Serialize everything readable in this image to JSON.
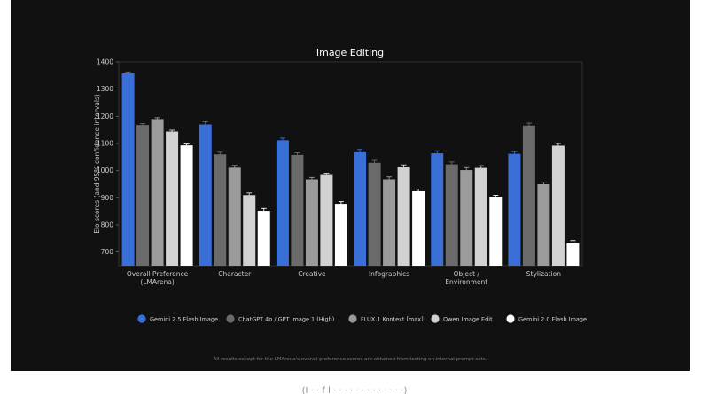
{
  "chart_data": {
    "type": "bar",
    "title": "Image Editing",
    "ylabel": "Elo scores (and 95% confidence intervals)",
    "xlabel": "",
    "ylim": [
      650,
      1400
    ],
    "yticks": [
      700,
      800,
      900,
      1000,
      1100,
      1200,
      1300,
      1400
    ],
    "categories": [
      "Overall Preference (LMArena)",
      "Character",
      "Creative",
      "Infographics",
      "Object / Environment",
      "Stylization"
    ],
    "category_lines": [
      [
        "Overall Preference",
        "(LMArena)"
      ],
      [
        "Character"
      ],
      [
        "Creative"
      ],
      [
        "Infographics"
      ],
      [
        "Object /",
        "Environment"
      ],
      [
        "Stylization"
      ]
    ],
    "series": [
      {
        "name": "Gemini 2.5 Flash Image",
        "color": "#3a6fd8",
        "values": [
          1358,
          1170,
          1112,
          1068,
          1064,
          1062
        ],
        "errors": [
          5,
          10,
          8,
          10,
          9,
          8
        ]
      },
      {
        "name": "ChatGPT 4o / GPT Image 1 (High)",
        "color": "#6b6b6b",
        "values": [
          1168,
          1060,
          1058,
          1029,
          1023,
          1166
        ],
        "errors": [
          5,
          8,
          8,
          9,
          9,
          9
        ]
      },
      {
        "name": "FLUX.1 Kontext [max]",
        "color": "#9b9b9b",
        "values": [
          1190,
          1011,
          968,
          968,
          1002,
          950
        ],
        "errors": [
          5,
          8,
          7,
          9,
          9,
          8
        ]
      },
      {
        "name": "Qwen Image Edit",
        "color": "#d2d2d2",
        "values": [
          1144,
          910,
          984,
          1012,
          1010,
          1092
        ],
        "errors": [
          5,
          8,
          7,
          9,
          8,
          8
        ]
      },
      {
        "name": "Gemini 2.0 Flash Image",
        "color": "#ffffff",
        "values": [
          1093,
          852,
          878,
          924,
          902,
          732
        ],
        "errors": [
          5,
          9,
          8,
          8,
          7,
          10
        ]
      }
    ],
    "grid": false,
    "legend_position": "bottom"
  },
  "footnote": "All results except for the LMArena's overall preference scores are obtained from testing on internal prompt sets.",
  "below_text": "(I     ·          ·       f      l   ·  ·   ·        ·     ·   ·  ·           ·  ·     ·      ·   ·  ·)"
}
